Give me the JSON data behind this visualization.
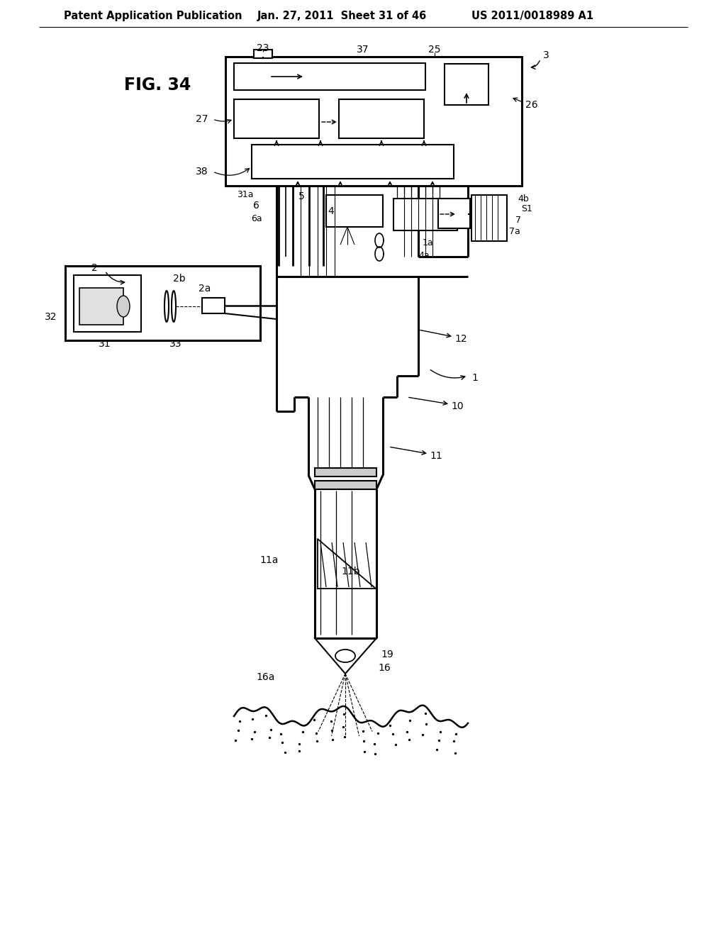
{
  "bg_color": "#ffffff",
  "header_left": "Patent Application Publication",
  "header_center": "Jan. 27, 2011  Sheet 31 of 46",
  "header_right": "US 2011/0018989 A1",
  "fig_label": "FIG. 34",
  "ann_fs": 10,
  "hdr_fs": 10.5,
  "fig_fs": 17
}
